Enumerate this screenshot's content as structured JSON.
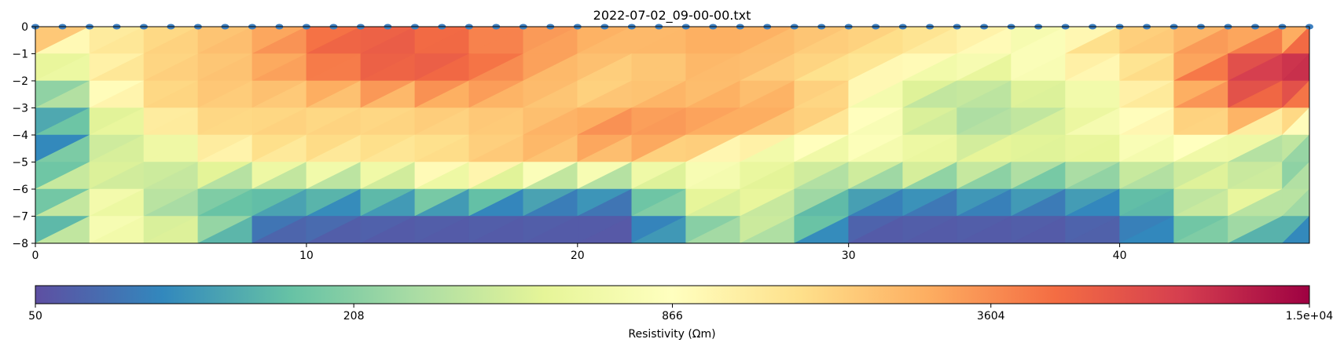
{
  "chart_data": {
    "type": "heatmap",
    "title": "2022-07-02_09-00-00.txt",
    "xlabel": "",
    "ylabel": "",
    "xlim": [
      0,
      47
    ],
    "ylim": [
      -8,
      0
    ],
    "xticks": [
      0,
      10,
      20,
      30,
      40
    ],
    "yticks": [
      0,
      -1,
      -2,
      -3,
      -4,
      -5,
      -6,
      -7,
      -8
    ],
    "grid": false,
    "colormap": "Spectral_r",
    "colormap_stops": [
      "#5e4fa2",
      "#3288bd",
      "#66c2a5",
      "#abdda4",
      "#e6f598",
      "#ffffbf",
      "#fee08b",
      "#fdae61",
      "#f46d43",
      "#d53e4f",
      "#9e0142"
    ],
    "colorbar": {
      "label": "Resistivity (Ωm)",
      "scale": "log",
      "range": [
        50,
        15000
      ],
      "tick_labels": [
        "50",
        "208",
        "866",
        "3604",
        "1.5e+04"
      ],
      "tick_values": [
        50,
        208,
        866,
        3604,
        15000
      ]
    },
    "electrodes": {
      "marker_color": "#3d7fc0",
      "x": [
        0,
        1,
        2,
        3,
        4,
        5,
        6,
        7,
        8,
        9,
        10,
        11,
        12,
        13,
        14,
        15,
        16,
        17,
        18,
        19,
        20,
        21,
        22,
        23,
        24,
        25,
        26,
        27,
        28,
        29,
        30,
        31,
        32,
        33,
        34,
        35,
        36,
        37,
        38,
        39,
        40,
        41,
        42,
        43,
        44,
        45,
        46,
        47
      ],
      "y": 0
    },
    "depth_rows": [
      0,
      -1,
      -2,
      -3,
      -4,
      -5,
      -6,
      -7,
      -8
    ],
    "distance_cols": [
      0,
      2,
      4,
      6,
      8,
      10,
      12,
      14,
      16,
      18,
      20,
      22,
      24,
      26,
      28,
      30,
      32,
      34,
      36,
      38,
      40,
      42,
      44,
      46
    ],
    "resistivity_grid": [
      [
        9000,
        1300,
        1500,
        1900,
        2600,
        4000,
        5500,
        5000,
        3800,
        3200,
        2800,
        2400,
        2600,
        2900,
        2300,
        2000,
        1700,
        1300,
        950,
        450,
        1700,
        2400,
        3000,
        1500
      ],
      [
        700,
        1000,
        1600,
        1900,
        2300,
        4400,
        6000,
        6500,
        5200,
        3800,
        2600,
        2200,
        2500,
        2600,
        2000,
        1700,
        1300,
        1100,
        800,
        1300,
        1600,
        2000,
        5500,
        9000
      ],
      [
        200,
        900,
        1700,
        2000,
        2200,
        2900,
        4300,
        5500,
        4600,
        2800,
        1900,
        1600,
        2200,
        2200,
        1600,
        1200,
        600,
        400,
        450,
        700,
        900,
        2300,
        6500,
        10000
      ],
      [
        60,
        500,
        1400,
        1900,
        1700,
        1600,
        1500,
        1700,
        2400,
        2400,
        2000,
        2800,
        2500,
        3300,
        3200,
        1300,
        400,
        260,
        300,
        420,
        700,
        1300,
        4500,
        3000
      ],
      [
        60,
        150,
        700,
        1500,
        1800,
        2000,
        1900,
        1700,
        1400,
        2300,
        3600,
        4200,
        3200,
        1900,
        1500,
        1300,
        800,
        300,
        320,
        600,
        800,
        1000,
        1200,
        500
      ],
      [
        80,
        550,
        200,
        700,
        1000,
        1100,
        1100,
        1400,
        2000,
        1700,
        1600,
        1700,
        1100,
        500,
        350,
        500,
        800,
        700,
        550,
        300,
        550,
        550,
        350,
        160
      ],
      [
        110,
        800,
        400,
        160,
        180,
        210,
        150,
        300,
        330,
        180,
        140,
        120,
        700,
        900,
        350,
        150,
        130,
        120,
        150,
        130,
        160,
        300,
        900,
        400
      ],
      [
        60,
        900,
        500,
        250,
        90,
        80,
        65,
        60,
        60,
        60,
        60,
        55,
        200,
        450,
        300,
        70,
        60,
        60,
        60,
        60,
        70,
        140,
        400,
        200
      ],
      [
        55,
        800,
        650,
        550,
        55,
        55,
        55,
        55,
        55,
        55,
        55,
        55,
        100,
        400,
        200,
        55,
        55,
        55,
        55,
        55,
        55,
        90,
        200,
        60
      ]
    ]
  }
}
